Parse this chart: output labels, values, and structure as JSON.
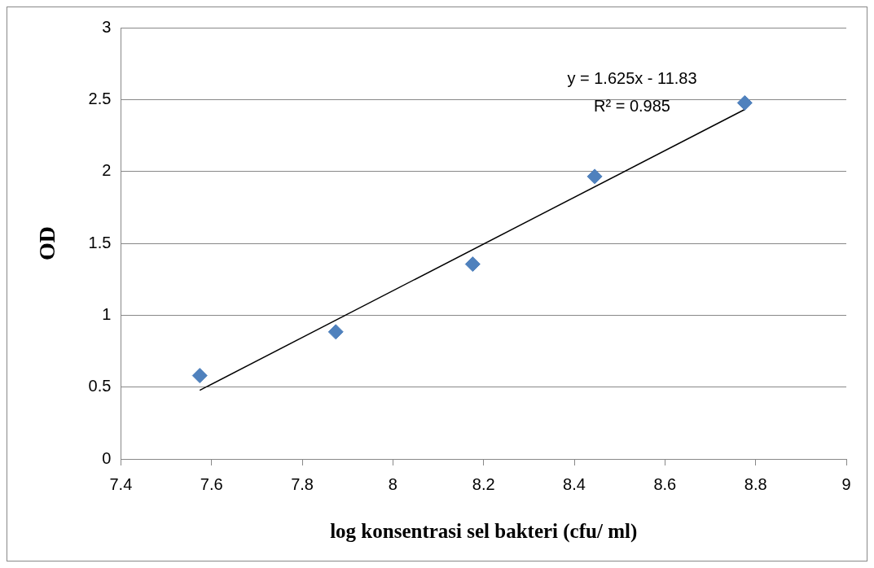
{
  "chart_data": {
    "type": "scatter",
    "xlabel": "log konsentrasi sel bakteri (cfu/ ml)",
    "ylabel": "OD",
    "xlim": [
      7.4,
      9
    ],
    "xticks": [
      7.4,
      7.6,
      7.8,
      8,
      8.2,
      8.4,
      8.6,
      8.8,
      9
    ],
    "ylim": [
      0,
      3
    ],
    "yticks": [
      0,
      0.5,
      1,
      1.5,
      2,
      2.5,
      3
    ],
    "grid": "y",
    "legend": false,
    "series": [
      {
        "type": "scatter",
        "marker": "diamond",
        "color": "#4f81bd",
        "x": [
          7.574,
          7.874,
          8.176,
          8.445,
          8.776
        ],
        "values": [
          0.58,
          0.884,
          1.355,
          1.965,
          2.477
        ]
      },
      {
        "type": "line",
        "marker": "none",
        "color": "#000000",
        "x": [
          7.574,
          8.776
        ],
        "values": [
          0.478,
          2.431
        ]
      }
    ],
    "annotations": [
      "y = 1.625x - 11.83",
      "R² = 0.985"
    ]
  }
}
